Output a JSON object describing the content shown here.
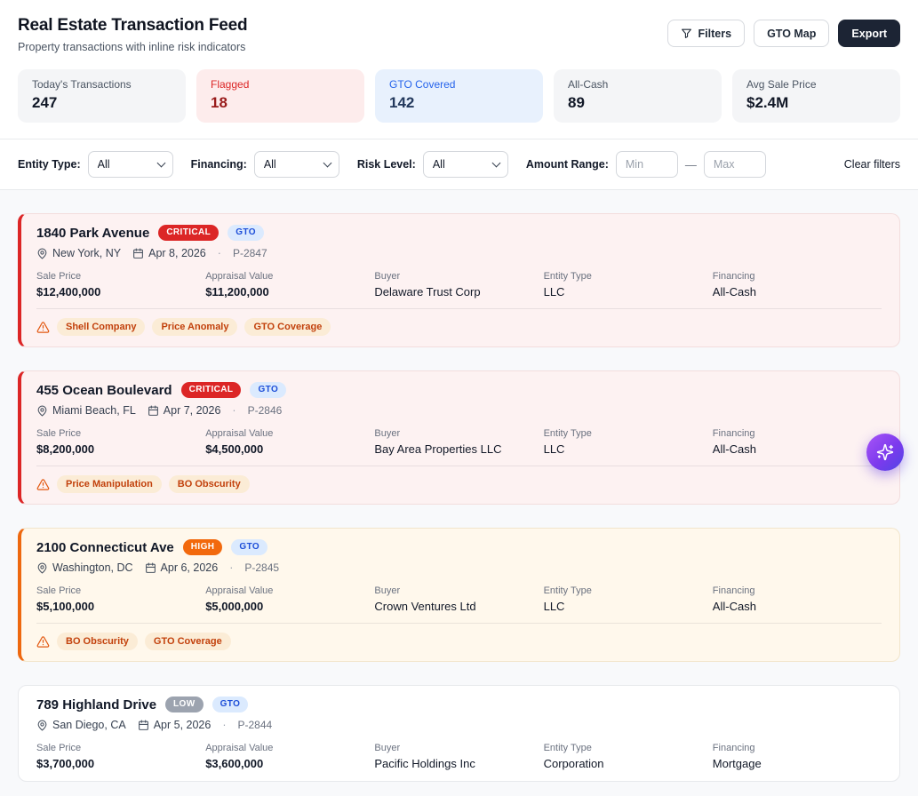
{
  "header": {
    "title": "Real Estate Transaction Feed",
    "subtitle": "Property transactions with inline risk indicators",
    "filters_button": "Filters",
    "gto_map_button": "GTO Map",
    "export_button": "Export"
  },
  "stats": [
    {
      "label": "Today's Transactions",
      "value": "247",
      "variant": "default"
    },
    {
      "label": "Flagged",
      "value": "18",
      "variant": "flagged"
    },
    {
      "label": "GTO Covered",
      "value": "142",
      "variant": "gto"
    },
    {
      "label": "All-Cash",
      "value": "89",
      "variant": "default"
    },
    {
      "label": "Avg Sale Price",
      "value": "$2.4M",
      "variant": "default"
    }
  ],
  "filter_bar": {
    "entity_type_label": "Entity Type:",
    "entity_type_value": "All",
    "financing_label": "Financing:",
    "financing_value": "All",
    "risk_level_label": "Risk Level:",
    "risk_level_value": "All",
    "amount_range_label": "Amount Range:",
    "min_placeholder": "Min",
    "max_placeholder": "Max",
    "range_separator": "—",
    "clear_label": "Clear filters"
  },
  "field_labels": {
    "sale_price": "Sale Price",
    "appraisal_value": "Appraisal Value",
    "buyer": "Buyer",
    "entity_type": "Entity Type",
    "financing": "Financing"
  },
  "ui": {
    "meta_separator": "·"
  },
  "colors": {
    "critical": "#dc2626",
    "high": "#ee680f",
    "low": "#9ca3af",
    "gto_badge_bg": "#dbeafe",
    "gto_badge_text": "#1d4ed8",
    "accent_gradient": [
      "#a855f7",
      "#4f46e5"
    ],
    "export_button_bg": "#1c2434"
  },
  "transactions": [
    {
      "address": "1840 Park Avenue",
      "risk": "CRITICAL",
      "risk_level": "critical",
      "gto": "GTO",
      "location": "New York, NY",
      "date": "Apr 8, 2026",
      "parcel": "P-2847",
      "sale_price": "$12,400,000",
      "appraisal_value": "$11,200,000",
      "buyer": "Delaware Trust Corp",
      "entity_type": "LLC",
      "financing": "All-Cash",
      "flags": [
        "Shell Company",
        "Price Anomaly",
        "GTO Coverage"
      ]
    },
    {
      "address": "455 Ocean Boulevard",
      "risk": "CRITICAL",
      "risk_level": "critical",
      "gto": "GTO",
      "location": "Miami Beach, FL",
      "date": "Apr 7, 2026",
      "parcel": "P-2846",
      "sale_price": "$8,200,000",
      "appraisal_value": "$4,500,000",
      "buyer": "Bay Area Properties LLC",
      "entity_type": "LLC",
      "financing": "All-Cash",
      "flags": [
        "Price Manipulation",
        "BO Obscurity"
      ]
    },
    {
      "address": "2100 Connecticut Ave",
      "risk": "HIGH",
      "risk_level": "high",
      "gto": "GTO",
      "location": "Washington, DC",
      "date": "Apr 6, 2026",
      "parcel": "P-2845",
      "sale_price": "$5,100,000",
      "appraisal_value": "$5,000,000",
      "buyer": "Crown Ventures Ltd",
      "entity_type": "LLC",
      "financing": "All-Cash",
      "flags": [
        "BO Obscurity",
        "GTO Coverage"
      ]
    },
    {
      "address": "789 Highland Drive",
      "risk": "LOW",
      "risk_level": "low",
      "gto": "GTO",
      "location": "San Diego, CA",
      "date": "Apr 5, 2026",
      "parcel": "P-2844",
      "sale_price": "$3,700,000",
      "appraisal_value": "$3,600,000",
      "buyer": "Pacific Holdings Inc",
      "entity_type": "Corporation",
      "financing": "Mortgage",
      "flags": []
    }
  ]
}
